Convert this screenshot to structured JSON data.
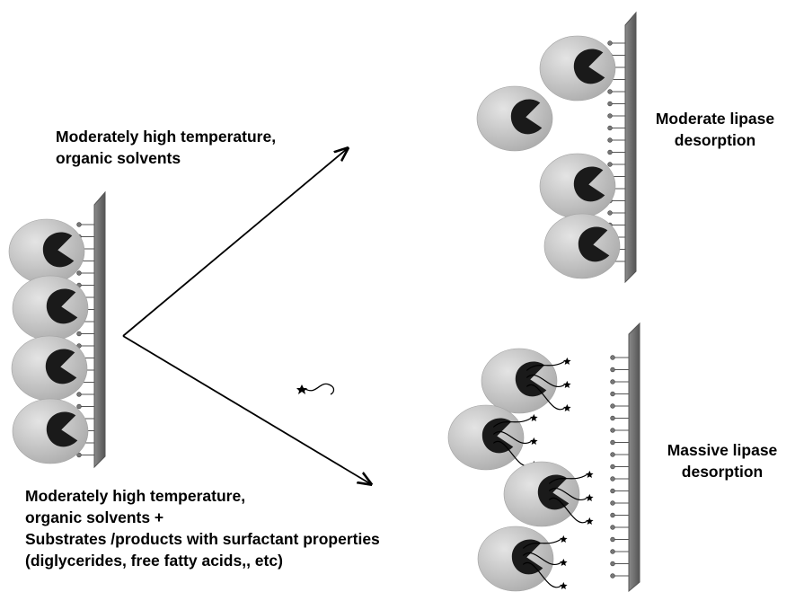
{
  "labels": {
    "top_condition": [
      "Moderately high temperature,",
      "organic solvents"
    ],
    "top_outcome": [
      "Moderate lipase",
      "desorption"
    ],
    "bottom_condition": [
      "Moderately high temperature,",
      "organic solvents +",
      "Substrates /products with surfactant properties",
      "(diglycerides,  free fatty acids,, etc)"
    ],
    "bottom_outcome": [
      "Massive  lipase",
      "desorption"
    ]
  },
  "colors": {
    "enzyme_light": "#dcdcdc",
    "enzyme_mid": "#b4b4b4",
    "active_site": "#1a1a1a",
    "support": "#6e6e6e",
    "support_edge": "#555555",
    "linker": "#555555",
    "arrow": "#000000"
  },
  "icons": {
    "enzyme": "lipase-enzyme-icon",
    "surfactant": "surfactant-molecule-icon",
    "support": "hydrophobic-support-icon"
  }
}
